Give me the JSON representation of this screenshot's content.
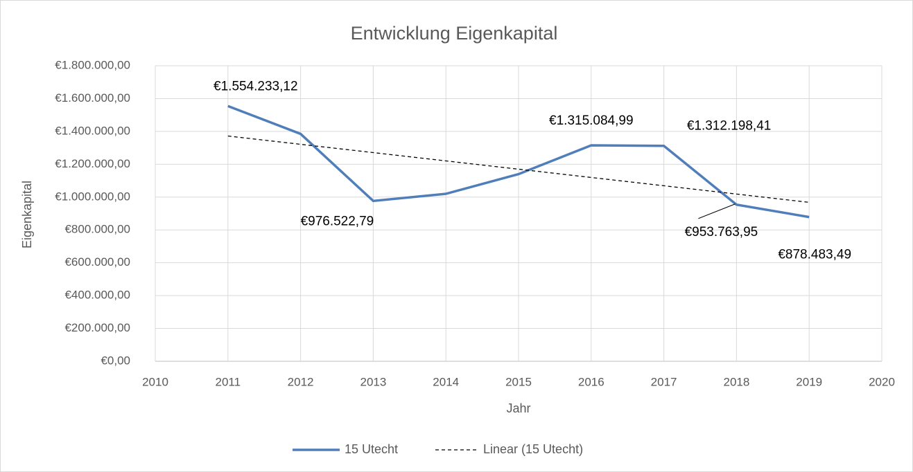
{
  "chart_data": {
    "type": "line",
    "title": "Entwicklung Eigenkapital",
    "x_label": "Jahr",
    "y_label": "Eigenkapital",
    "x": [
      2011,
      2012,
      2013,
      2014,
      2015,
      2016,
      2017,
      2018,
      2019
    ],
    "series": [
      {
        "name": "15 Utecht",
        "color": "#4f7ebb",
        "values": [
          1554233.12,
          1385000,
          976522.79,
          1020000,
          1140000,
          1315084.99,
          1312198.41,
          953763.95,
          878483.49
        ],
        "value_labels": [
          "€1.554.233,12",
          null,
          "€976.522,79",
          null,
          null,
          "€1.315.084,99",
          "€1.312.198,41",
          "€953.763,95",
          "€878.483,49"
        ]
      },
      {
        "name": "Linear (15 Utecht)",
        "color": "#000000",
        "dashed": true,
        "values": [
          1372000,
          1321500,
          1271000,
          1220500,
          1170000,
          1119500,
          1069000,
          1018500,
          968000
        ]
      }
    ],
    "xlim": [
      2010,
      2020
    ],
    "xticks": [
      2010,
      2011,
      2012,
      2013,
      2014,
      2015,
      2016,
      2017,
      2018,
      2019,
      2020
    ],
    "ylim": [
      0,
      1800000
    ],
    "yticks": [
      {
        "value": 0,
        "label": "€0,00"
      },
      {
        "value": 200000,
        "label": "€200.000,00"
      },
      {
        "value": 400000,
        "label": "€400.000,00"
      },
      {
        "value": 600000,
        "label": "€600.000,00"
      },
      {
        "value": 800000,
        "label": "€800.000,00"
      },
      {
        "value": 1000000,
        "label": "€1.000.000,00"
      },
      {
        "value": 1200000,
        "label": "€1.200.000,00"
      },
      {
        "value": 1400000,
        "label": "€1.400.000,00"
      },
      {
        "value": 1600000,
        "label": "€1.600.000,00"
      },
      {
        "value": 1800000,
        "label": "€1.800.000,00"
      }
    ],
    "grid": true,
    "legend": "bottom"
  }
}
